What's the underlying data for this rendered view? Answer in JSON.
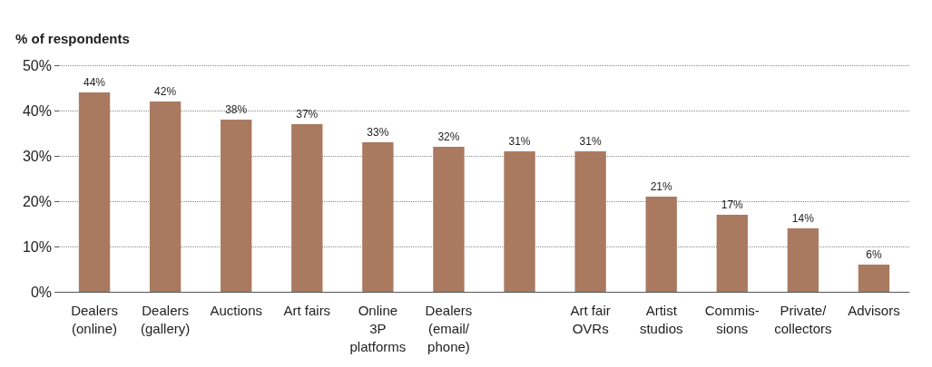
{
  "chart_data": {
    "type": "bar",
    "ylabel": "% of respondents",
    "categories": [
      "Dealers\n(online)",
      "Dealers\n(gallery)",
      "Auctions",
      "Art fairs",
      "Online\n3P\nplatforms",
      "Dealers\n(email/\nphone)",
      null,
      "Art fair\nOVRs",
      "Artist\nstudios",
      "Commis-\nsions",
      "Private/\ncollectors",
      "Advisors"
    ],
    "values": [
      44,
      42,
      38,
      37,
      33,
      32,
      31,
      31,
      21,
      17,
      14,
      6
    ],
    "value_labels": [
      "44%",
      "42%",
      "38%",
      "37%",
      "33%",
      "32%",
      "31%",
      "31%",
      "21%",
      "17%",
      "14%",
      "6%"
    ],
    "color": "#a97a60",
    "ylim": [
      0,
      50
    ],
    "yticks": [
      {
        "value": 0,
        "label": "0%"
      },
      {
        "value": 10,
        "label": "10%"
      },
      {
        "value": 20,
        "label": "20%"
      },
      {
        "value": 30,
        "label": "30%"
      },
      {
        "value": 40,
        "label": "40%"
      },
      {
        "value": 50,
        "label": "50%"
      }
    ],
    "grid": "y"
  }
}
